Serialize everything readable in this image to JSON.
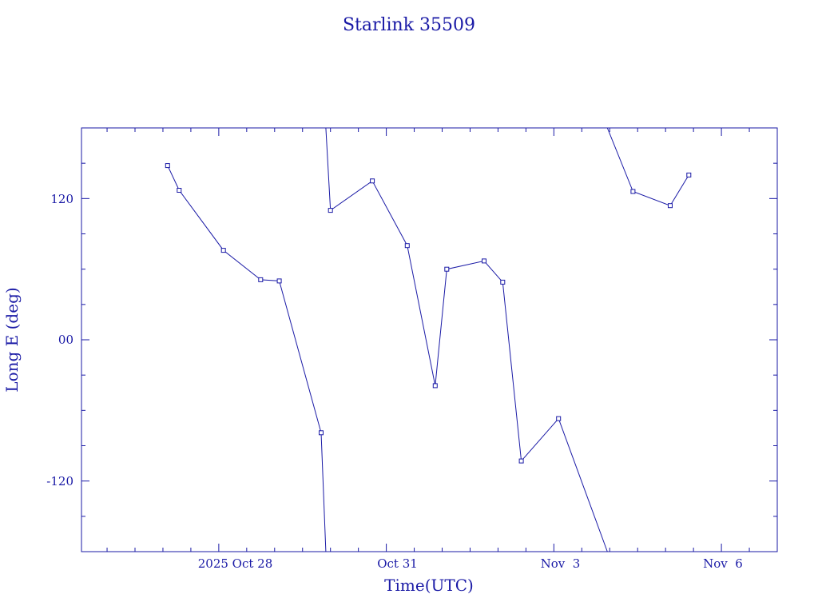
{
  "chart_data": {
    "type": "line",
    "title": "Starlink 35509",
    "xlabel": "Time(UTC)",
    "ylabel": "Long E (deg)",
    "x_ticks": [
      "2025 Oct 28",
      "Oct 31",
      "Nov  3",
      "Nov  6"
    ],
    "y_ticks": [
      "120",
      "00",
      "-120"
    ],
    "xlim": [
      "2025-10-25T13:00",
      "2025-11-07T00:00"
    ],
    "ylim": [
      -180,
      180
    ],
    "grid": false,
    "segments": [
      {
        "points": [
          {
            "x": "2025-10-27T02:00",
            "y": 148
          },
          {
            "x": "2025-10-27T07:00",
            "y": 127
          },
          {
            "x": "2025-10-28T02:00",
            "y": 76
          },
          {
            "x": "2025-10-28T18:00",
            "y": 51
          },
          {
            "x": "2025-10-29T02:00",
            "y": 50
          },
          {
            "x": "2025-10-29T20:00",
            "y": -79
          },
          {
            "x": "2025-10-29T22:00",
            "y": -180
          }
        ]
      },
      {
        "points": [
          {
            "x": "2025-10-29T22:00",
            "y": 180
          },
          {
            "x": "2025-10-30T00:00",
            "y": 110
          },
          {
            "x": "2025-10-30T18:00",
            "y": 135
          },
          {
            "x": "2025-10-31T09:00",
            "y": 80
          },
          {
            "x": "2025-10-31T21:00",
            "y": -39
          },
          {
            "x": "2025-11-01T02:00",
            "y": 60
          },
          {
            "x": "2025-11-01T18:00",
            "y": 67
          },
          {
            "x": "2025-11-02T02:00",
            "y": 49
          },
          {
            "x": "2025-11-02T10:00",
            "y": -103
          },
          {
            "x": "2025-11-03T02:00",
            "y": -67
          },
          {
            "x": "2025-11-03T23:00",
            "y": -180
          }
        ]
      },
      {
        "points": [
          {
            "x": "2025-11-03T23:00",
            "y": 180
          },
          {
            "x": "2025-11-04T10:00",
            "y": 126
          },
          {
            "x": "2025-11-05T02:00",
            "y": 114
          },
          {
            "x": "2025-11-05T10:00",
            "y": 140
          }
        ]
      }
    ]
  }
}
